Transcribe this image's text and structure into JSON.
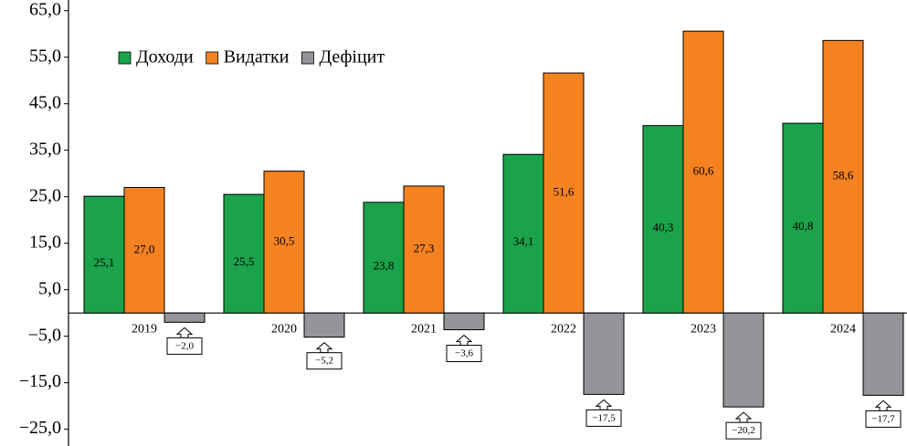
{
  "chart_data": {
    "type": "bar",
    "categories": [
      "2019",
      "2020",
      "2021",
      "2022",
      "2023",
      "2024"
    ],
    "series": [
      {
        "name": "Доходи",
        "color": "#1aa34a",
        "values": [
          25.1,
          25.5,
          23.8,
          34.1,
          40.3,
          40.8
        ],
        "value_labels": [
          "25,1",
          "25,5",
          "23,8",
          "34,1",
          "40,3",
          "40,8"
        ]
      },
      {
        "name": "Видатки",
        "color": "#f58220",
        "values": [
          27.0,
          30.5,
          27.3,
          51.6,
          60.6,
          58.6
        ],
        "value_labels": [
          "27,0",
          "30,5",
          "27,3",
          "51,6",
          "60,6",
          "58,6"
        ]
      },
      {
        "name": "Дефіцит",
        "color": "#939598",
        "values": [
          -2.0,
          -5.2,
          -3.6,
          -17.5,
          -20.2,
          -17.7
        ],
        "value_labels": [
          "−2,0",
          "−5,2",
          "−3,6",
          "−17,5",
          "−20,2",
          "−17,7"
        ]
      }
    ],
    "ylim": [
      -28.6,
      67.3
    ],
    "yticks": [
      {
        "value": 65,
        "label": "65,0"
      },
      {
        "value": 55,
        "label": "55,0"
      },
      {
        "value": 45,
        "label": "45,0"
      },
      {
        "value": 35,
        "label": "35,0"
      },
      {
        "value": 25,
        "label": "25,0"
      },
      {
        "value": 15,
        "label": "15,0"
      },
      {
        "value": 5,
        "label": "5,0"
      },
      {
        "value": -5,
        "label": "−5,0"
      },
      {
        "value": -15,
        "label": "−15,0"
      },
      {
        "value": -25,
        "label": "−25,0"
      }
    ],
    "legend": "upper left",
    "grid": false
  }
}
